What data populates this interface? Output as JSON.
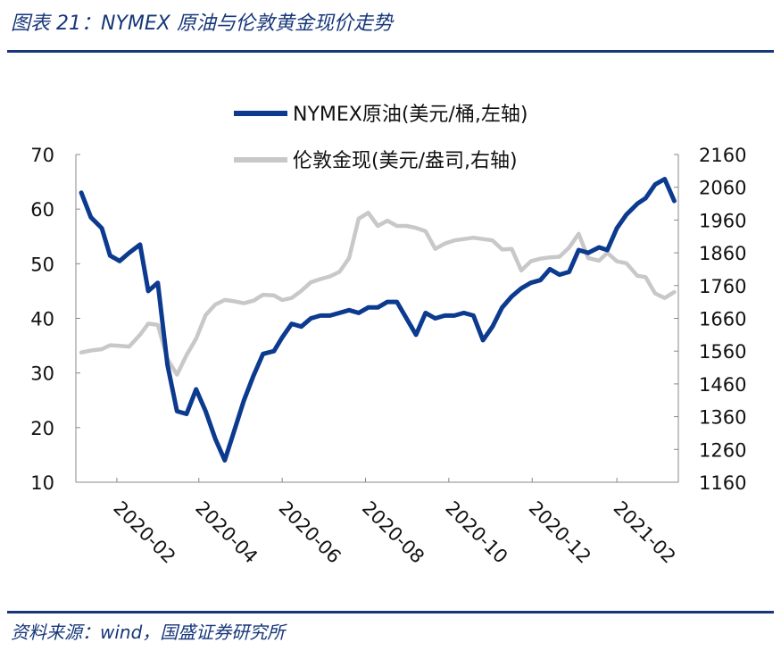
{
  "header": {
    "title": "图表 21：NYMEX 原油与伦敦黄金现价走势"
  },
  "footer": {
    "source": "资料来源：wind，国盛证券研究所"
  },
  "chart_data": {
    "type": "line",
    "title": "",
    "x_dates": [
      "2020-01-06",
      "2020-01-13",
      "2020-01-21",
      "2020-01-27",
      "2020-02-03",
      "2020-02-10",
      "2020-02-18",
      "2020-02-24",
      "2020-03-02",
      "2020-03-09",
      "2020-03-16",
      "2020-03-23",
      "2020-03-30",
      "2020-04-06",
      "2020-04-13",
      "2020-04-20",
      "2020-04-27",
      "2020-05-04",
      "2020-05-11",
      "2020-05-18",
      "2020-05-26",
      "2020-06-01",
      "2020-06-08",
      "2020-06-15",
      "2020-06-22",
      "2020-06-29",
      "2020-07-06",
      "2020-07-13",
      "2020-07-20",
      "2020-07-27",
      "2020-08-03",
      "2020-08-10",
      "2020-08-17",
      "2020-08-24",
      "2020-08-31",
      "2020-09-07",
      "2020-09-14",
      "2020-09-21",
      "2020-09-28",
      "2020-10-05",
      "2020-10-12",
      "2020-10-19",
      "2020-10-26",
      "2020-11-02",
      "2020-11-09",
      "2020-11-16",
      "2020-11-23",
      "2020-11-30",
      "2020-12-07",
      "2020-12-14",
      "2020-12-21",
      "2020-12-28",
      "2021-01-04",
      "2021-01-11",
      "2021-01-19",
      "2021-01-25",
      "2021-02-01",
      "2021-02-08",
      "2021-02-16",
      "2021-02-22",
      "2021-03-01",
      "2021-03-08",
      "2021-03-15"
    ],
    "x_tick_labels": [
      "2020-02",
      "2020-04",
      "2020-06",
      "2020-08",
      "2020-10",
      "2020-12",
      "2021-02"
    ],
    "y_left": {
      "lim": [
        10,
        70
      ],
      "ticks": [
        "10",
        "20",
        "30",
        "40",
        "50",
        "60",
        "70"
      ]
    },
    "y_right": {
      "lim": [
        1160,
        2160
      ],
      "ticks": [
        "1160",
        "1260",
        "1360",
        "1460",
        "1560",
        "1660",
        "1760",
        "1860",
        "1960",
        "2060",
        "2160"
      ]
    },
    "series": [
      {
        "name": "NYMEX原油(美元/桶,左轴)",
        "axis": "left",
        "color": "#0b3a8f",
        "values": [
          63.0,
          58.5,
          56.5,
          51.5,
          50.5,
          52.0,
          53.5,
          45.0,
          46.5,
          31.5,
          23.0,
          22.5,
          27.0,
          23.0,
          18.0,
          14.0,
          19.5,
          25.0,
          29.5,
          33.5,
          34.0,
          36.5,
          39.0,
          38.5,
          40.0,
          40.5,
          40.5,
          41.0,
          41.5,
          41.0,
          42.0,
          42.0,
          43.0,
          43.0,
          40.0,
          37.0,
          41.0,
          40.0,
          40.5,
          40.5,
          41.0,
          40.5,
          36.0,
          38.5,
          42.0,
          44.0,
          45.5,
          46.5,
          47.0,
          49.0,
          48.0,
          48.5,
          52.5,
          52.0,
          53.0,
          52.5,
          56.5,
          59.0,
          61.0,
          62.0,
          64.5,
          65.5,
          61.5
        ]
      },
      {
        "name": "伦敦金现(美元/盎司,右轴)",
        "axis": "right",
        "color": "#c8c8c8",
        "values": [
          1556,
          1562,
          1566,
          1578,
          1576,
          1574,
          1610,
          1644,
          1640,
          1536,
          1488,
          1548,
          1598,
          1670,
          1702,
          1716,
          1712,
          1706,
          1714,
          1732,
          1730,
          1716,
          1722,
          1744,
          1770,
          1780,
          1788,
          1802,
          1844,
          1964,
          1982,
          1942,
          1958,
          1942,
          1942,
          1936,
          1926,
          1872,
          1888,
          1898,
          1902,
          1906,
          1902,
          1898,
          1870,
          1872,
          1806,
          1834,
          1842,
          1846,
          1848,
          1876,
          1918,
          1844,
          1836,
          1860,
          1834,
          1828,
          1790,
          1786,
          1736,
          1722,
          1740
        ]
      }
    ],
    "legend_position": "top",
    "grid": false
  }
}
